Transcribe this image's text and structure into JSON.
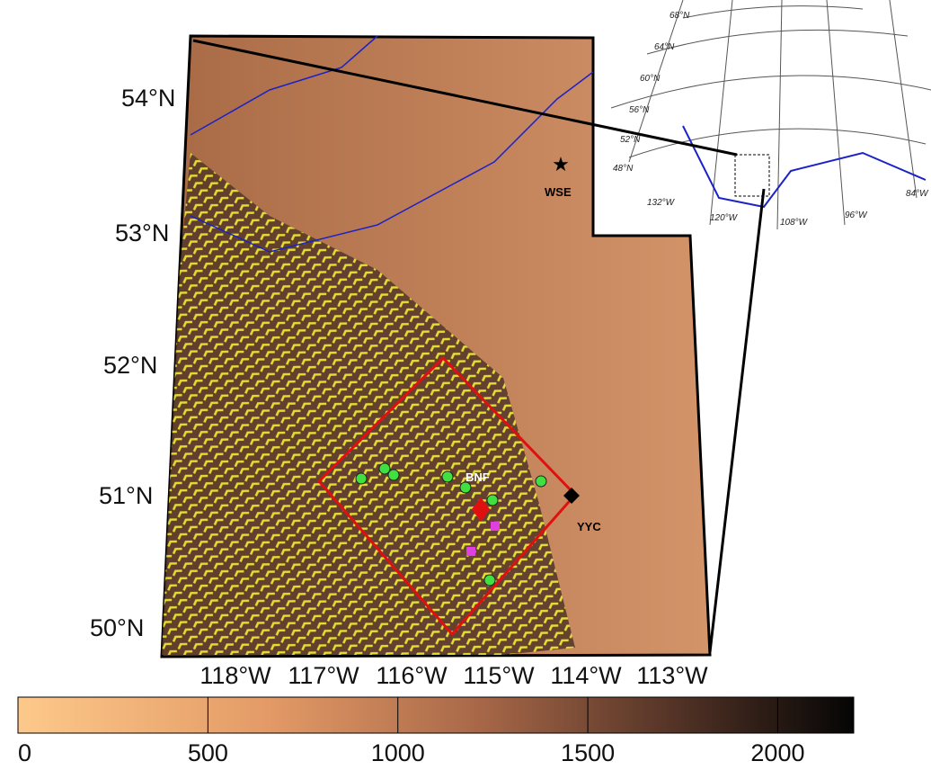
{
  "map": {
    "lat_labels": [
      "54°N",
      "53°N",
      "52°N",
      "51°N",
      "50°N"
    ],
    "lon_labels": [
      "118°W",
      "117°W",
      "116°W",
      "115°W",
      "114°W",
      "113°W"
    ],
    "stations": {
      "wse": "WSE",
      "bnf": "BNF",
      "yyc": "YYC"
    },
    "inset": {
      "lat_labels": [
        "68°N",
        "64°N",
        "60°N",
        "56°N",
        "52°N",
        "48°N"
      ],
      "lon_labels": [
        "132°W",
        "120°W",
        "108°W",
        "96°W",
        "84°W"
      ]
    }
  },
  "colorbar": {
    "range": [
      0,
      2200
    ],
    "ticks": [
      0,
      500,
      1000,
      1500,
      2000
    ]
  }
}
